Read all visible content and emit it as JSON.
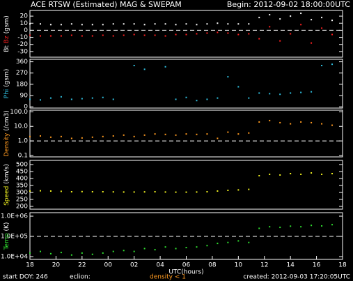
{
  "header": {
    "title": "ACE RTSW (Estimated) MAG & SWEPAM",
    "begin": "Begin: 2012-09-02 18:00:00UTC"
  },
  "footer": {
    "start": "start DOY: 246",
    "eclipse": "eclion:",
    "density_note": "density < 1",
    "created": "created: 2012-09-03 17:20:05UTC"
  },
  "chart_data": [
    {
      "type": "scatter",
      "ylabel": [
        {
          "text": "Bt",
          "color": "#ffffff"
        },
        {
          "text": "Bz",
          "color": "#ff2020"
        },
        {
          "text": "(gsm)",
          "color": "#ffffff"
        }
      ],
      "x": [
        18,
        18.8,
        19.6,
        20.4,
        21.2,
        22,
        22.8,
        23.6,
        24.4,
        25.2,
        26,
        26.8,
        27.6,
        28.4,
        29.2,
        30,
        30.8,
        31.6,
        32.4,
        33.2,
        34,
        34.8,
        35.6,
        36.4,
        37.2,
        38,
        38.8,
        39.6,
        40.4,
        41.2
      ],
      "xlim": [
        18,
        42
      ],
      "ylim": [
        -38,
        28
      ],
      "yticks": [
        20,
        10,
        0,
        -10,
        -20,
        -30
      ],
      "reference_line": 0,
      "series": [
        {
          "name": "Bt",
          "color": "#ffffff",
          "values": [
            9,
            9,
            8,
            8,
            9,
            8,
            8,
            8,
            9,
            9,
            9,
            8,
            9,
            9,
            8,
            9,
            8,
            9,
            10,
            9,
            9,
            9,
            18,
            22,
            16,
            20,
            24,
            15,
            18,
            14
          ]
        },
        {
          "name": "Bz",
          "color": "#ff2020",
          "values": [
            -7,
            -8,
            -8,
            -8,
            -7,
            -8,
            -8,
            -7,
            -8,
            -7,
            -6,
            -7,
            -7,
            -8,
            -6,
            -6,
            -5,
            -4,
            -3,
            -4,
            -6,
            -5,
            -12,
            5,
            -15,
            -5,
            8,
            -18,
            3,
            -6
          ]
        }
      ]
    },
    {
      "type": "scatter",
      "ylabel": [
        {
          "text": "Phi",
          "color": "#30c0e0"
        },
        {
          "text": "(gsm)",
          "color": "#ffffff"
        }
      ],
      "x": [
        18,
        18.8,
        19.6,
        20.4,
        21.2,
        22,
        22.8,
        23.6,
        24.4,
        25.2,
        26,
        26.8,
        27.6,
        28.4,
        29.2,
        30,
        30.8,
        31.6,
        32.4,
        33.2,
        34,
        34.8,
        35.6,
        36.4,
        37.2,
        38,
        38.8,
        39.6,
        40.4,
        41.2
      ],
      "xlim": [
        18,
        42
      ],
      "ylim": [
        -10,
        380
      ],
      "yticks": [
        360,
        270,
        180,
        90,
        0
      ],
      "series": [
        {
          "name": "Phi",
          "color": "#30c0e0",
          "values": [
            60,
            55,
            70,
            80,
            60,
            65,
            70,
            75,
            60,
            null,
            330,
            300,
            null,
            320,
            60,
            75,
            50,
            60,
            70,
            240,
            160,
            70,
            110,
            105,
            100,
            110,
            115,
            120,
            330,
            340
          ]
        }
      ]
    },
    {
      "type": "scatter",
      "log": true,
      "ylabel": [
        {
          "text": "Density",
          "color": "#ff9a20"
        },
        {
          "text": "(/cm3)",
          "color": "#ffffff"
        }
      ],
      "x": [
        18,
        18.8,
        19.6,
        20.4,
        21.2,
        22,
        22.8,
        23.6,
        24.4,
        25.2,
        26,
        26.8,
        27.6,
        28.4,
        29.2,
        30,
        30.8,
        31.6,
        32.4,
        33.2,
        34,
        34.8,
        35.6,
        36.4,
        37.2,
        38,
        38.8,
        39.6,
        40.4,
        41.2
      ],
      "xlim": [
        18,
        42
      ],
      "ylim": [
        0.08,
        130
      ],
      "yticks": [
        {
          "value": 100,
          "label": "100.0"
        },
        {
          "value": 10,
          "label": "10.0"
        },
        {
          "value": 1,
          "label": "1.0"
        },
        0.1
      ],
      "reference_line": 1,
      "series": [
        {
          "name": "Density",
          "color": "#ff9a20",
          "values": [
            2,
            2.2,
            1.8,
            2,
            1.5,
            1.6,
            1.8,
            2,
            2.2,
            2.5,
            2,
            2.5,
            3,
            2.8,
            2.5,
            3,
            2.8,
            3,
            1.5,
            4,
            3,
            3.5,
            20,
            25,
            18,
            15,
            20,
            18,
            15,
            12
          ]
        }
      ]
    },
    {
      "type": "scatter",
      "ylabel": [
        {
          "text": "Speed",
          "color": "#f0f020"
        },
        {
          "text": "(km/s)",
          "color": "#ffffff"
        }
      ],
      "x": [
        18,
        18.8,
        19.6,
        20.4,
        21.2,
        22,
        22.8,
        23.6,
        24.4,
        25.2,
        26,
        26.8,
        27.6,
        28.4,
        29.2,
        30,
        30.8,
        31.6,
        32.4,
        33.2,
        34,
        34.8,
        35.6,
        36.4,
        37.2,
        38,
        38.8,
        39.6,
        40.4,
        41.2
      ],
      "xlim": [
        18,
        42
      ],
      "ylim": [
        180,
        530
      ],
      "yticks": [
        500,
        450,
        400,
        350,
        300,
        250,
        200
      ],
      "series": [
        {
          "name": "Speed",
          "color": "#f0f020",
          "values": [
            310,
            312,
            310,
            308,
            305,
            306,
            305,
            305,
            304,
            303,
            303,
            304,
            305,
            303,
            302,
            302,
            303,
            305,
            310,
            315,
            318,
            322,
            420,
            430,
            425,
            435,
            430,
            440,
            430,
            435
          ]
        }
      ]
    },
    {
      "type": "scatter",
      "log": true,
      "ylabel": [
        {
          "text": "Temp",
          "color": "#30e030"
        },
        {
          "text": "(K)",
          "color": "#ffffff"
        }
      ],
      "x": [
        18,
        18.8,
        19.6,
        20.4,
        21.2,
        22,
        22.8,
        23.6,
        24.4,
        25.2,
        26,
        26.8,
        27.6,
        28.4,
        29.2,
        30,
        30.8,
        31.6,
        32.4,
        33.2,
        34,
        34.8,
        35.6,
        36.4,
        37.2,
        38,
        38.8,
        39.6,
        40.4,
        41.2
      ],
      "xlim": [
        18,
        42
      ],
      "ylim": [
        7300,
        1490000
      ],
      "yticks": [
        {
          "value": 1000000,
          "label": "1.0E+06"
        },
        {
          "value": 100000,
          "label": "1.0E+05"
        },
        {
          "value": 10000,
          "label": "1.0E+04"
        }
      ],
      "reference_line": 100000,
      "xlabel": "UTC(hours)",
      "xticks": [
        18,
        20,
        22,
        {
          "value": 24,
          "label": "00"
        },
        {
          "value": 26,
          "label": "02"
        },
        {
          "value": 28,
          "label": "04"
        },
        {
          "value": 30,
          "label": "06"
        },
        {
          "value": 32,
          "label": "08"
        },
        {
          "value": 34,
          "label": "10"
        },
        {
          "value": 36,
          "label": "12"
        },
        {
          "value": 38,
          "label": "14"
        },
        {
          "value": 40,
          "label": "16"
        },
        {
          "value": 42,
          "label": "18"
        }
      ],
      "series": [
        {
          "name": "Temp",
          "color": "#30e030",
          "values": [
            15000,
            18000,
            14000,
            16000,
            12000,
            15000,
            13000,
            15000,
            18000,
            20000,
            18000,
            25000,
            22000,
            30000,
            25000,
            28000,
            30000,
            35000,
            45000,
            50000,
            60000,
            50000,
            250000,
            300000,
            280000,
            320000,
            300000,
            350000,
            330000,
            380000
          ]
        }
      ]
    }
  ]
}
